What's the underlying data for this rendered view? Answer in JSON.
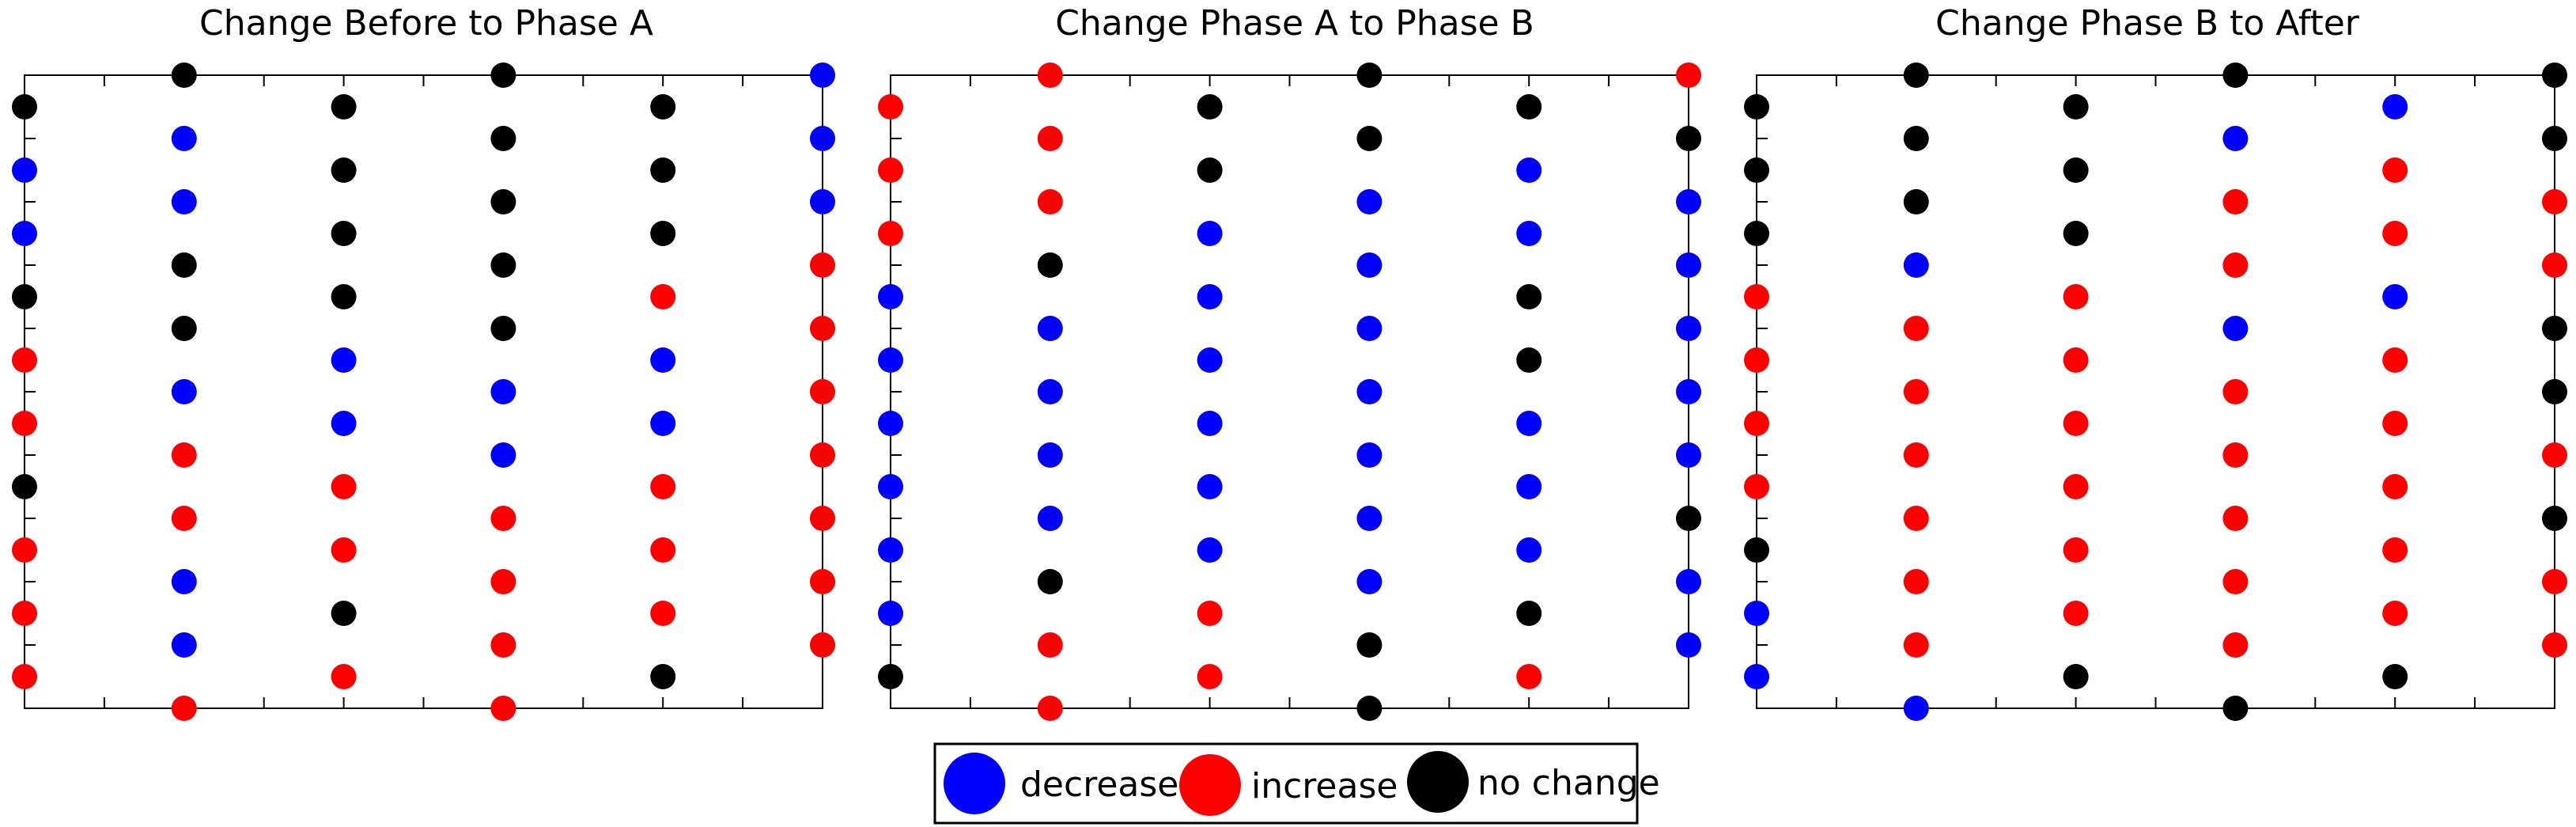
{
  "colors": {
    "decrease": "#0000ff",
    "increase": "#ff0000",
    "no_change": "#000000"
  },
  "legend": {
    "placement": "bottom-center",
    "entries": [
      {
        "key": "decrease",
        "label": "decrease"
      },
      {
        "key": "increase",
        "label": "increase"
      },
      {
        "key": "no_change",
        "label": "no change"
      }
    ]
  },
  "chart_data": [
    {
      "type": "scatter",
      "title": "Change Before to Phase A",
      "grid": false,
      "xlim": [
        0,
        10
      ],
      "ylim": [
        0,
        20
      ],
      "columns": [
        {
          "x": 0,
          "points": [
            [
              19,
              "no_change"
            ],
            [
              17,
              "decrease"
            ],
            [
              15,
              "decrease"
            ],
            [
              13,
              "no_change"
            ],
            [
              11,
              "increase"
            ],
            [
              9,
              "increase"
            ],
            [
              7,
              "no_change"
            ],
            [
              5,
              "increase"
            ],
            [
              3,
              "increase"
            ],
            [
              1,
              "increase"
            ]
          ]
        },
        {
          "x": 2,
          "points": [
            [
              20,
              "no_change"
            ],
            [
              18,
              "decrease"
            ],
            [
              16,
              "decrease"
            ],
            [
              14,
              "no_change"
            ],
            [
              12,
              "no_change"
            ],
            [
              10,
              "decrease"
            ],
            [
              8,
              "increase"
            ],
            [
              6,
              "increase"
            ],
            [
              4,
              "decrease"
            ],
            [
              2,
              "decrease"
            ],
            [
              0,
              "increase"
            ]
          ]
        },
        {
          "x": 4,
          "points": [
            [
              19,
              "no_change"
            ],
            [
              17,
              "no_change"
            ],
            [
              15,
              "no_change"
            ],
            [
              13,
              "no_change"
            ],
            [
              11,
              "decrease"
            ],
            [
              9,
              "decrease"
            ],
            [
              7,
              "increase"
            ],
            [
              5,
              "increase"
            ],
            [
              3,
              "no_change"
            ],
            [
              1,
              "increase"
            ]
          ]
        },
        {
          "x": 6,
          "points": [
            [
              20,
              "no_change"
            ],
            [
              18,
              "no_change"
            ],
            [
              16,
              "no_change"
            ],
            [
              14,
              "no_change"
            ],
            [
              12,
              "no_change"
            ],
            [
              10,
              "decrease"
            ],
            [
              8,
              "decrease"
            ],
            [
              6,
              "increase"
            ],
            [
              4,
              "increase"
            ],
            [
              2,
              "increase"
            ],
            [
              0,
              "increase"
            ]
          ]
        },
        {
          "x": 8,
          "points": [
            [
              19,
              "no_change"
            ],
            [
              17,
              "no_change"
            ],
            [
              15,
              "no_change"
            ],
            [
              13,
              "increase"
            ],
            [
              11,
              "decrease"
            ],
            [
              9,
              "decrease"
            ],
            [
              7,
              "increase"
            ],
            [
              5,
              "increase"
            ],
            [
              3,
              "increase"
            ],
            [
              1,
              "no_change"
            ]
          ]
        },
        {
          "x": 10,
          "points": [
            [
              20,
              "decrease"
            ],
            [
              18,
              "decrease"
            ],
            [
              16,
              "decrease"
            ],
            [
              14,
              "increase"
            ],
            [
              12,
              "increase"
            ],
            [
              10,
              "increase"
            ],
            [
              8,
              "increase"
            ],
            [
              6,
              "increase"
            ],
            [
              4,
              "increase"
            ],
            [
              2,
              "increase"
            ]
          ]
        }
      ]
    },
    {
      "type": "scatter",
      "title": "Change Phase A to Phase B",
      "grid": false,
      "xlim": [
        0,
        10
      ],
      "ylim": [
        0,
        20
      ],
      "columns": [
        {
          "x": 0,
          "points": [
            [
              19,
              "increase"
            ],
            [
              17,
              "increase"
            ],
            [
              15,
              "increase"
            ],
            [
              13,
              "decrease"
            ],
            [
              11,
              "decrease"
            ],
            [
              9,
              "decrease"
            ],
            [
              7,
              "decrease"
            ],
            [
              5,
              "decrease"
            ],
            [
              3,
              "decrease"
            ],
            [
              1,
              "no_change"
            ]
          ]
        },
        {
          "x": 2,
          "points": [
            [
              20,
              "increase"
            ],
            [
              18,
              "increase"
            ],
            [
              16,
              "increase"
            ],
            [
              14,
              "no_change"
            ],
            [
              12,
              "decrease"
            ],
            [
              10,
              "decrease"
            ],
            [
              8,
              "decrease"
            ],
            [
              6,
              "decrease"
            ],
            [
              4,
              "no_change"
            ],
            [
              2,
              "increase"
            ],
            [
              0,
              "increase"
            ]
          ]
        },
        {
          "x": 4,
          "points": [
            [
              19,
              "no_change"
            ],
            [
              17,
              "no_change"
            ],
            [
              15,
              "decrease"
            ],
            [
              13,
              "decrease"
            ],
            [
              11,
              "decrease"
            ],
            [
              9,
              "decrease"
            ],
            [
              7,
              "decrease"
            ],
            [
              5,
              "decrease"
            ],
            [
              3,
              "increase"
            ],
            [
              1,
              "increase"
            ]
          ]
        },
        {
          "x": 6,
          "points": [
            [
              20,
              "no_change"
            ],
            [
              18,
              "no_change"
            ],
            [
              16,
              "decrease"
            ],
            [
              14,
              "decrease"
            ],
            [
              12,
              "decrease"
            ],
            [
              10,
              "decrease"
            ],
            [
              8,
              "decrease"
            ],
            [
              6,
              "decrease"
            ],
            [
              4,
              "decrease"
            ],
            [
              2,
              "no_change"
            ],
            [
              0,
              "no_change"
            ]
          ]
        },
        {
          "x": 8,
          "points": [
            [
              19,
              "no_change"
            ],
            [
              17,
              "decrease"
            ],
            [
              15,
              "decrease"
            ],
            [
              13,
              "no_change"
            ],
            [
              11,
              "no_change"
            ],
            [
              9,
              "decrease"
            ],
            [
              7,
              "decrease"
            ],
            [
              5,
              "decrease"
            ],
            [
              3,
              "no_change"
            ],
            [
              1,
              "increase"
            ]
          ]
        },
        {
          "x": 10,
          "points": [
            [
              20,
              "increase"
            ],
            [
              18,
              "no_change"
            ],
            [
              16,
              "decrease"
            ],
            [
              14,
              "decrease"
            ],
            [
              12,
              "decrease"
            ],
            [
              10,
              "decrease"
            ],
            [
              8,
              "decrease"
            ],
            [
              6,
              "no_change"
            ],
            [
              4,
              "decrease"
            ],
            [
              2,
              "decrease"
            ]
          ]
        }
      ]
    },
    {
      "type": "scatter",
      "title": "Change Phase B to After",
      "grid": false,
      "xlim": [
        0,
        10
      ],
      "ylim": [
        0,
        20
      ],
      "columns": [
        {
          "x": 0,
          "points": [
            [
              19,
              "no_change"
            ],
            [
              17,
              "no_change"
            ],
            [
              15,
              "no_change"
            ],
            [
              13,
              "increase"
            ],
            [
              11,
              "increase"
            ],
            [
              9,
              "increase"
            ],
            [
              7,
              "increase"
            ],
            [
              5,
              "no_change"
            ],
            [
              3,
              "decrease"
            ],
            [
              1,
              "decrease"
            ]
          ]
        },
        {
          "x": 2,
          "points": [
            [
              20,
              "no_change"
            ],
            [
              18,
              "no_change"
            ],
            [
              16,
              "no_change"
            ],
            [
              14,
              "decrease"
            ],
            [
              12,
              "increase"
            ],
            [
              10,
              "increase"
            ],
            [
              8,
              "increase"
            ],
            [
              6,
              "increase"
            ],
            [
              4,
              "increase"
            ],
            [
              2,
              "increase"
            ],
            [
              0,
              "decrease"
            ]
          ]
        },
        {
          "x": 4,
          "points": [
            [
              19,
              "no_change"
            ],
            [
              17,
              "no_change"
            ],
            [
              15,
              "no_change"
            ],
            [
              13,
              "increase"
            ],
            [
              11,
              "increase"
            ],
            [
              9,
              "increase"
            ],
            [
              7,
              "increase"
            ],
            [
              5,
              "increase"
            ],
            [
              3,
              "increase"
            ],
            [
              1,
              "no_change"
            ]
          ]
        },
        {
          "x": 6,
          "points": [
            [
              20,
              "no_change"
            ],
            [
              18,
              "decrease"
            ],
            [
              16,
              "increase"
            ],
            [
              14,
              "increase"
            ],
            [
              12,
              "decrease"
            ],
            [
              10,
              "increase"
            ],
            [
              8,
              "increase"
            ],
            [
              6,
              "increase"
            ],
            [
              4,
              "increase"
            ],
            [
              2,
              "increase"
            ],
            [
              0,
              "no_change"
            ]
          ]
        },
        {
          "x": 8,
          "points": [
            [
              19,
              "decrease"
            ],
            [
              17,
              "increase"
            ],
            [
              15,
              "increase"
            ],
            [
              13,
              "decrease"
            ],
            [
              11,
              "increase"
            ],
            [
              9,
              "increase"
            ],
            [
              7,
              "increase"
            ],
            [
              5,
              "increase"
            ],
            [
              3,
              "increase"
            ],
            [
              1,
              "no_change"
            ]
          ]
        },
        {
          "x": 10,
          "points": [
            [
              20,
              "no_change"
            ],
            [
              18,
              "no_change"
            ],
            [
              16,
              "increase"
            ],
            [
              14,
              "increase"
            ],
            [
              12,
              "no_change"
            ],
            [
              10,
              "no_change"
            ],
            [
              8,
              "increase"
            ],
            [
              6,
              "no_change"
            ],
            [
              4,
              "increase"
            ],
            [
              2,
              "increase"
            ]
          ]
        }
      ]
    }
  ]
}
